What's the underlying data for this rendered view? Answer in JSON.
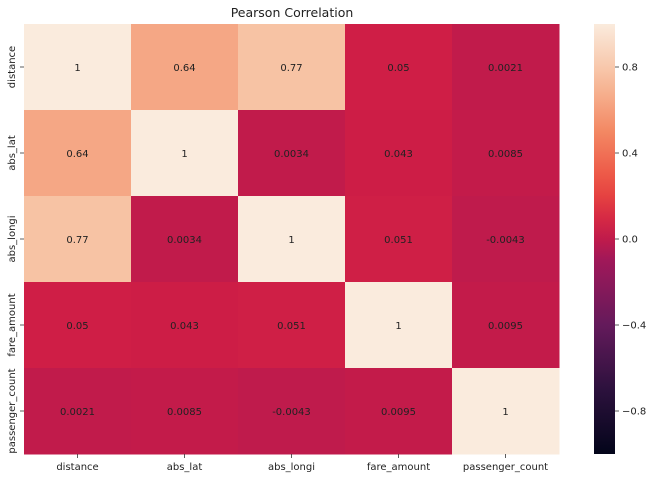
{
  "chart_data": {
    "type": "heatmap",
    "title": "Pearson Correlation",
    "xlabel": "",
    "ylabel": "",
    "x_categories": [
      "distance",
      "abs_lat",
      "abs_longi",
      "fare_amount",
      "passenger_count"
    ],
    "y_categories": [
      "distance",
      "abs_lat",
      "abs_longi",
      "fare_amount",
      "passenger_count"
    ],
    "values": [
      [
        1,
        0.64,
        0.77,
        0.05,
        0.0021
      ],
      [
        0.64,
        1,
        0.0034,
        0.043,
        0.0085
      ],
      [
        0.77,
        0.0034,
        1,
        0.051,
        -0.0043
      ],
      [
        0.05,
        0.043,
        0.051,
        1,
        0.0095
      ],
      [
        0.0021,
        0.0085,
        -0.0043,
        0.0095,
        1
      ]
    ],
    "cell_labels": [
      [
        "1",
        "0.64",
        "0.77",
        "0.05",
        "0.0021"
      ],
      [
        "0.64",
        "1",
        "0.0034",
        "0.043",
        "0.0085"
      ],
      [
        "0.77",
        "0.0034",
        "1",
        "0.051",
        "-0.0043"
      ],
      [
        "0.05",
        "0.043",
        "0.051",
        "1",
        "0.0095"
      ],
      [
        "0.0021",
        "0.0085",
        "-0.0043",
        "0.0095",
        "1"
      ]
    ],
    "colorbar": {
      "range": [
        -1,
        1
      ],
      "tick_values": [
        0.8,
        0.4,
        0.0,
        -0.4,
        -0.8
      ],
      "tick_labels": [
        "0.8",
        "0.4",
        "0.0",
        "−0.4",
        "−0.8"
      ],
      "colormap": "rocket"
    },
    "grid": false,
    "legend": "colorbar-right"
  }
}
